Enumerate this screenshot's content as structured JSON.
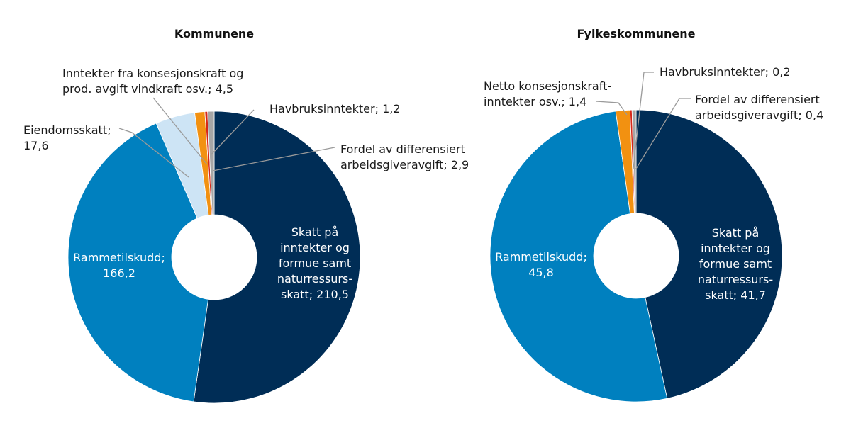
{
  "chart_data": [
    {
      "type": "pie",
      "title": "Kommunene",
      "slices": [
        {
          "value": 210.5,
          "color": "#002d56",
          "label_lines": [
            "Skatt på",
            "inntekter og",
            "formue samt",
            "naturressurs-",
            "skatt; 210,5"
          ]
        },
        {
          "value": 166.2,
          "color": "#0080bf",
          "label_lines": [
            "Rammetilskudd;",
            "166,2"
          ]
        },
        {
          "value": 17.6,
          "color": "#cde4f5",
          "label_lines": [
            "Eiendomsskatt;",
            "17,6"
          ]
        },
        {
          "value": 4.5,
          "color": "#f29111",
          "label_lines": [
            "Inntekter fra konsesjonskraft og",
            "prod. avgift vindkraft osv.; 4,5"
          ]
        },
        {
          "value": 1.2,
          "color": "#d62718",
          "label_lines": [
            "Havbruksinntekter; 1,2"
          ]
        },
        {
          "value": 2.9,
          "color": "#a6a6a6",
          "label_lines": [
            "Fordel av differensiert",
            "arbeidsgiveravgift; 2,9"
          ]
        }
      ]
    },
    {
      "type": "pie",
      "title": "Fylkeskommunene",
      "slices": [
        {
          "value": 41.7,
          "color": "#002d56",
          "label_lines": [
            "Skatt på",
            "inntekter og",
            "formue samt",
            "naturressurs-",
            "skatt; 41,7"
          ]
        },
        {
          "value": 45.8,
          "color": "#0080bf",
          "label_lines": [
            "Rammetilskudd;",
            "45,8"
          ]
        },
        {
          "value": 1.4,
          "color": "#f29111",
          "label_lines": [
            "Netto konsesjonskraft-",
            "inntekter  osv.; 1,4"
          ]
        },
        {
          "value": 0.2,
          "color": "#d62718",
          "label_lines": [
            "Havbruksinntekter; 0,2"
          ]
        },
        {
          "value": 0.4,
          "color": "#a6a6a6",
          "label_lines": [
            "Fordel av differensiert",
            "arbeidsgiveravgift; 0,4"
          ]
        }
      ]
    }
  ]
}
